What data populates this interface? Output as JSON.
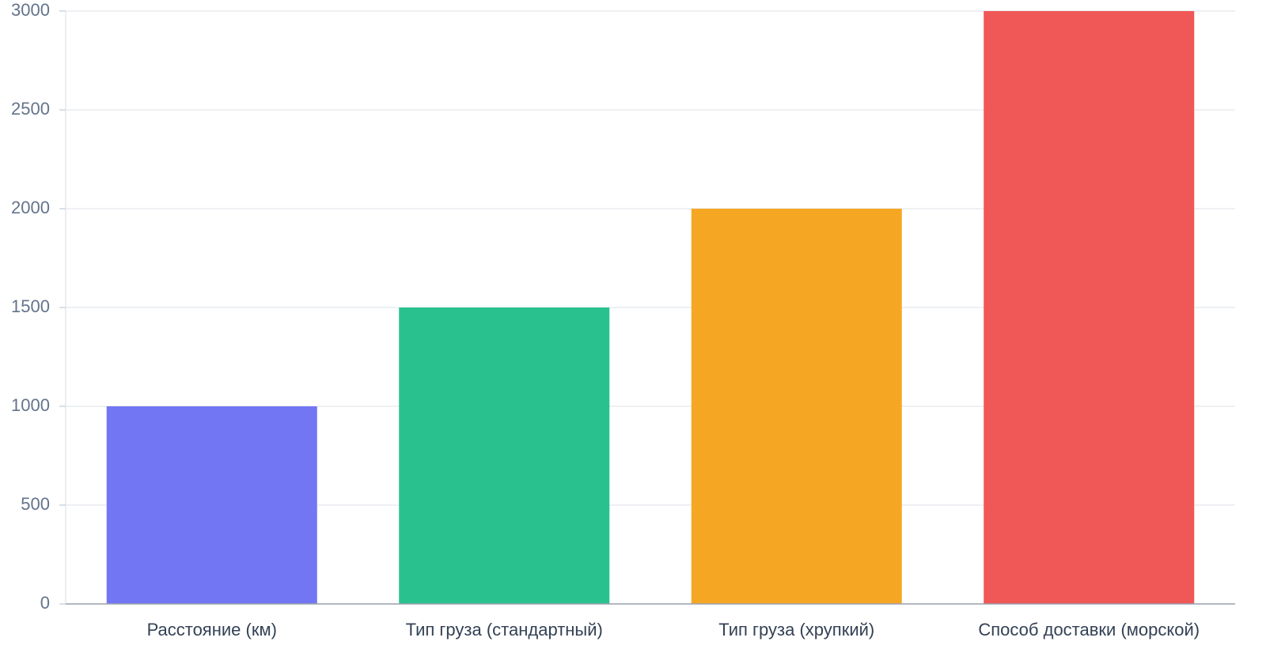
{
  "chart_data": {
    "type": "bar",
    "categories": [
      "Расстояние (км)",
      "Тип груза (стандартный)",
      "Тип груза (хрупкий)",
      "Способ доставки (морской)"
    ],
    "values": [
      1000,
      1500,
      2000,
      3000
    ],
    "colors": [
      "#7376f2",
      "#29c28e",
      "#f5a724",
      "#f05757"
    ],
    "ylim": [
      0,
      3000
    ],
    "yticks": [
      0,
      500,
      1000,
      1500,
      2000,
      2500,
      3000
    ],
    "grid": true
  }
}
